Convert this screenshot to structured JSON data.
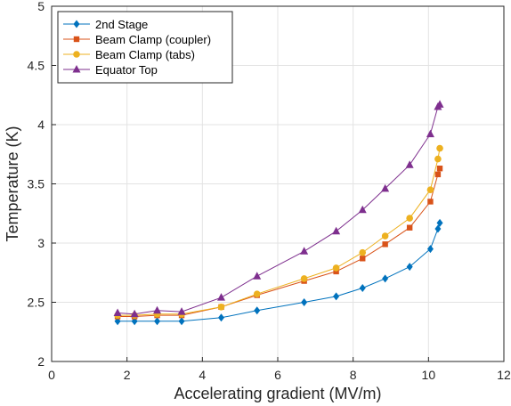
{
  "chart_data": {
    "type": "line",
    "xlabel": "Accelerating gradient (MV/m)",
    "ylabel": "Temperature (K)",
    "xlim": [
      0,
      12
    ],
    "ylim": [
      2,
      5
    ],
    "xticks": [
      "0",
      "2",
      "4",
      "6",
      "8",
      "10",
      "12"
    ],
    "yticks": [
      "2",
      "2.5",
      "3",
      "3.5",
      "4",
      "4.5",
      "5"
    ],
    "grid": true,
    "legend_position": "top-left",
    "series": [
      {
        "name": "2nd Stage",
        "color": "#0072BD",
        "marker": "diamond",
        "points": [
          [
            1.75,
            2.34
          ],
          [
            2.2,
            2.34
          ],
          [
            2.8,
            2.34
          ],
          [
            3.45,
            2.34
          ],
          [
            4.5,
            2.37
          ],
          [
            5.45,
            2.43
          ],
          [
            6.7,
            2.5
          ],
          [
            7.55,
            2.55
          ],
          [
            8.25,
            2.62
          ],
          [
            8.85,
            2.7
          ],
          [
            9.5,
            2.8
          ],
          [
            10.05,
            2.95
          ],
          [
            10.25,
            3.12
          ],
          [
            10.3,
            3.17
          ]
        ]
      },
      {
        "name": "Beam Clamp (coupler)",
        "color": "#D95319",
        "marker": "square",
        "points": [
          [
            1.75,
            2.38
          ],
          [
            2.2,
            2.38
          ],
          [
            2.8,
            2.39
          ],
          [
            3.45,
            2.39
          ],
          [
            4.5,
            2.46
          ],
          [
            5.45,
            2.56
          ],
          [
            6.7,
            2.68
          ],
          [
            7.55,
            2.76
          ],
          [
            8.25,
            2.87
          ],
          [
            8.85,
            2.99
          ],
          [
            9.5,
            3.13
          ],
          [
            10.05,
            3.35
          ],
          [
            10.25,
            3.58
          ],
          [
            10.3,
            3.63
          ]
        ]
      },
      {
        "name": "Beam Clamp (tabs)",
        "color": "#EDB120",
        "marker": "circle",
        "points": [
          [
            1.75,
            2.39
          ],
          [
            2.2,
            2.39
          ],
          [
            2.8,
            2.4
          ],
          [
            3.45,
            2.4
          ],
          [
            4.5,
            2.46
          ],
          [
            5.45,
            2.57
          ],
          [
            6.7,
            2.7
          ],
          [
            7.55,
            2.79
          ],
          [
            8.25,
            2.92
          ],
          [
            8.85,
            3.06
          ],
          [
            9.5,
            3.21
          ],
          [
            10.05,
            3.45
          ],
          [
            10.25,
            3.71
          ],
          [
            10.3,
            3.8
          ]
        ]
      },
      {
        "name": "Equator Top",
        "color": "#7E2F8E",
        "marker": "triangle",
        "points": [
          [
            1.75,
            2.41
          ],
          [
            2.2,
            2.4
          ],
          [
            2.8,
            2.43
          ],
          [
            3.45,
            2.42
          ],
          [
            4.5,
            2.54
          ],
          [
            5.45,
            2.72
          ],
          [
            6.7,
            2.93
          ],
          [
            7.55,
            3.1
          ],
          [
            8.25,
            3.28
          ],
          [
            8.85,
            3.46
          ],
          [
            9.5,
            3.66
          ],
          [
            10.05,
            3.92
          ],
          [
            10.25,
            4.15
          ],
          [
            10.3,
            4.17
          ]
        ]
      }
    ]
  }
}
